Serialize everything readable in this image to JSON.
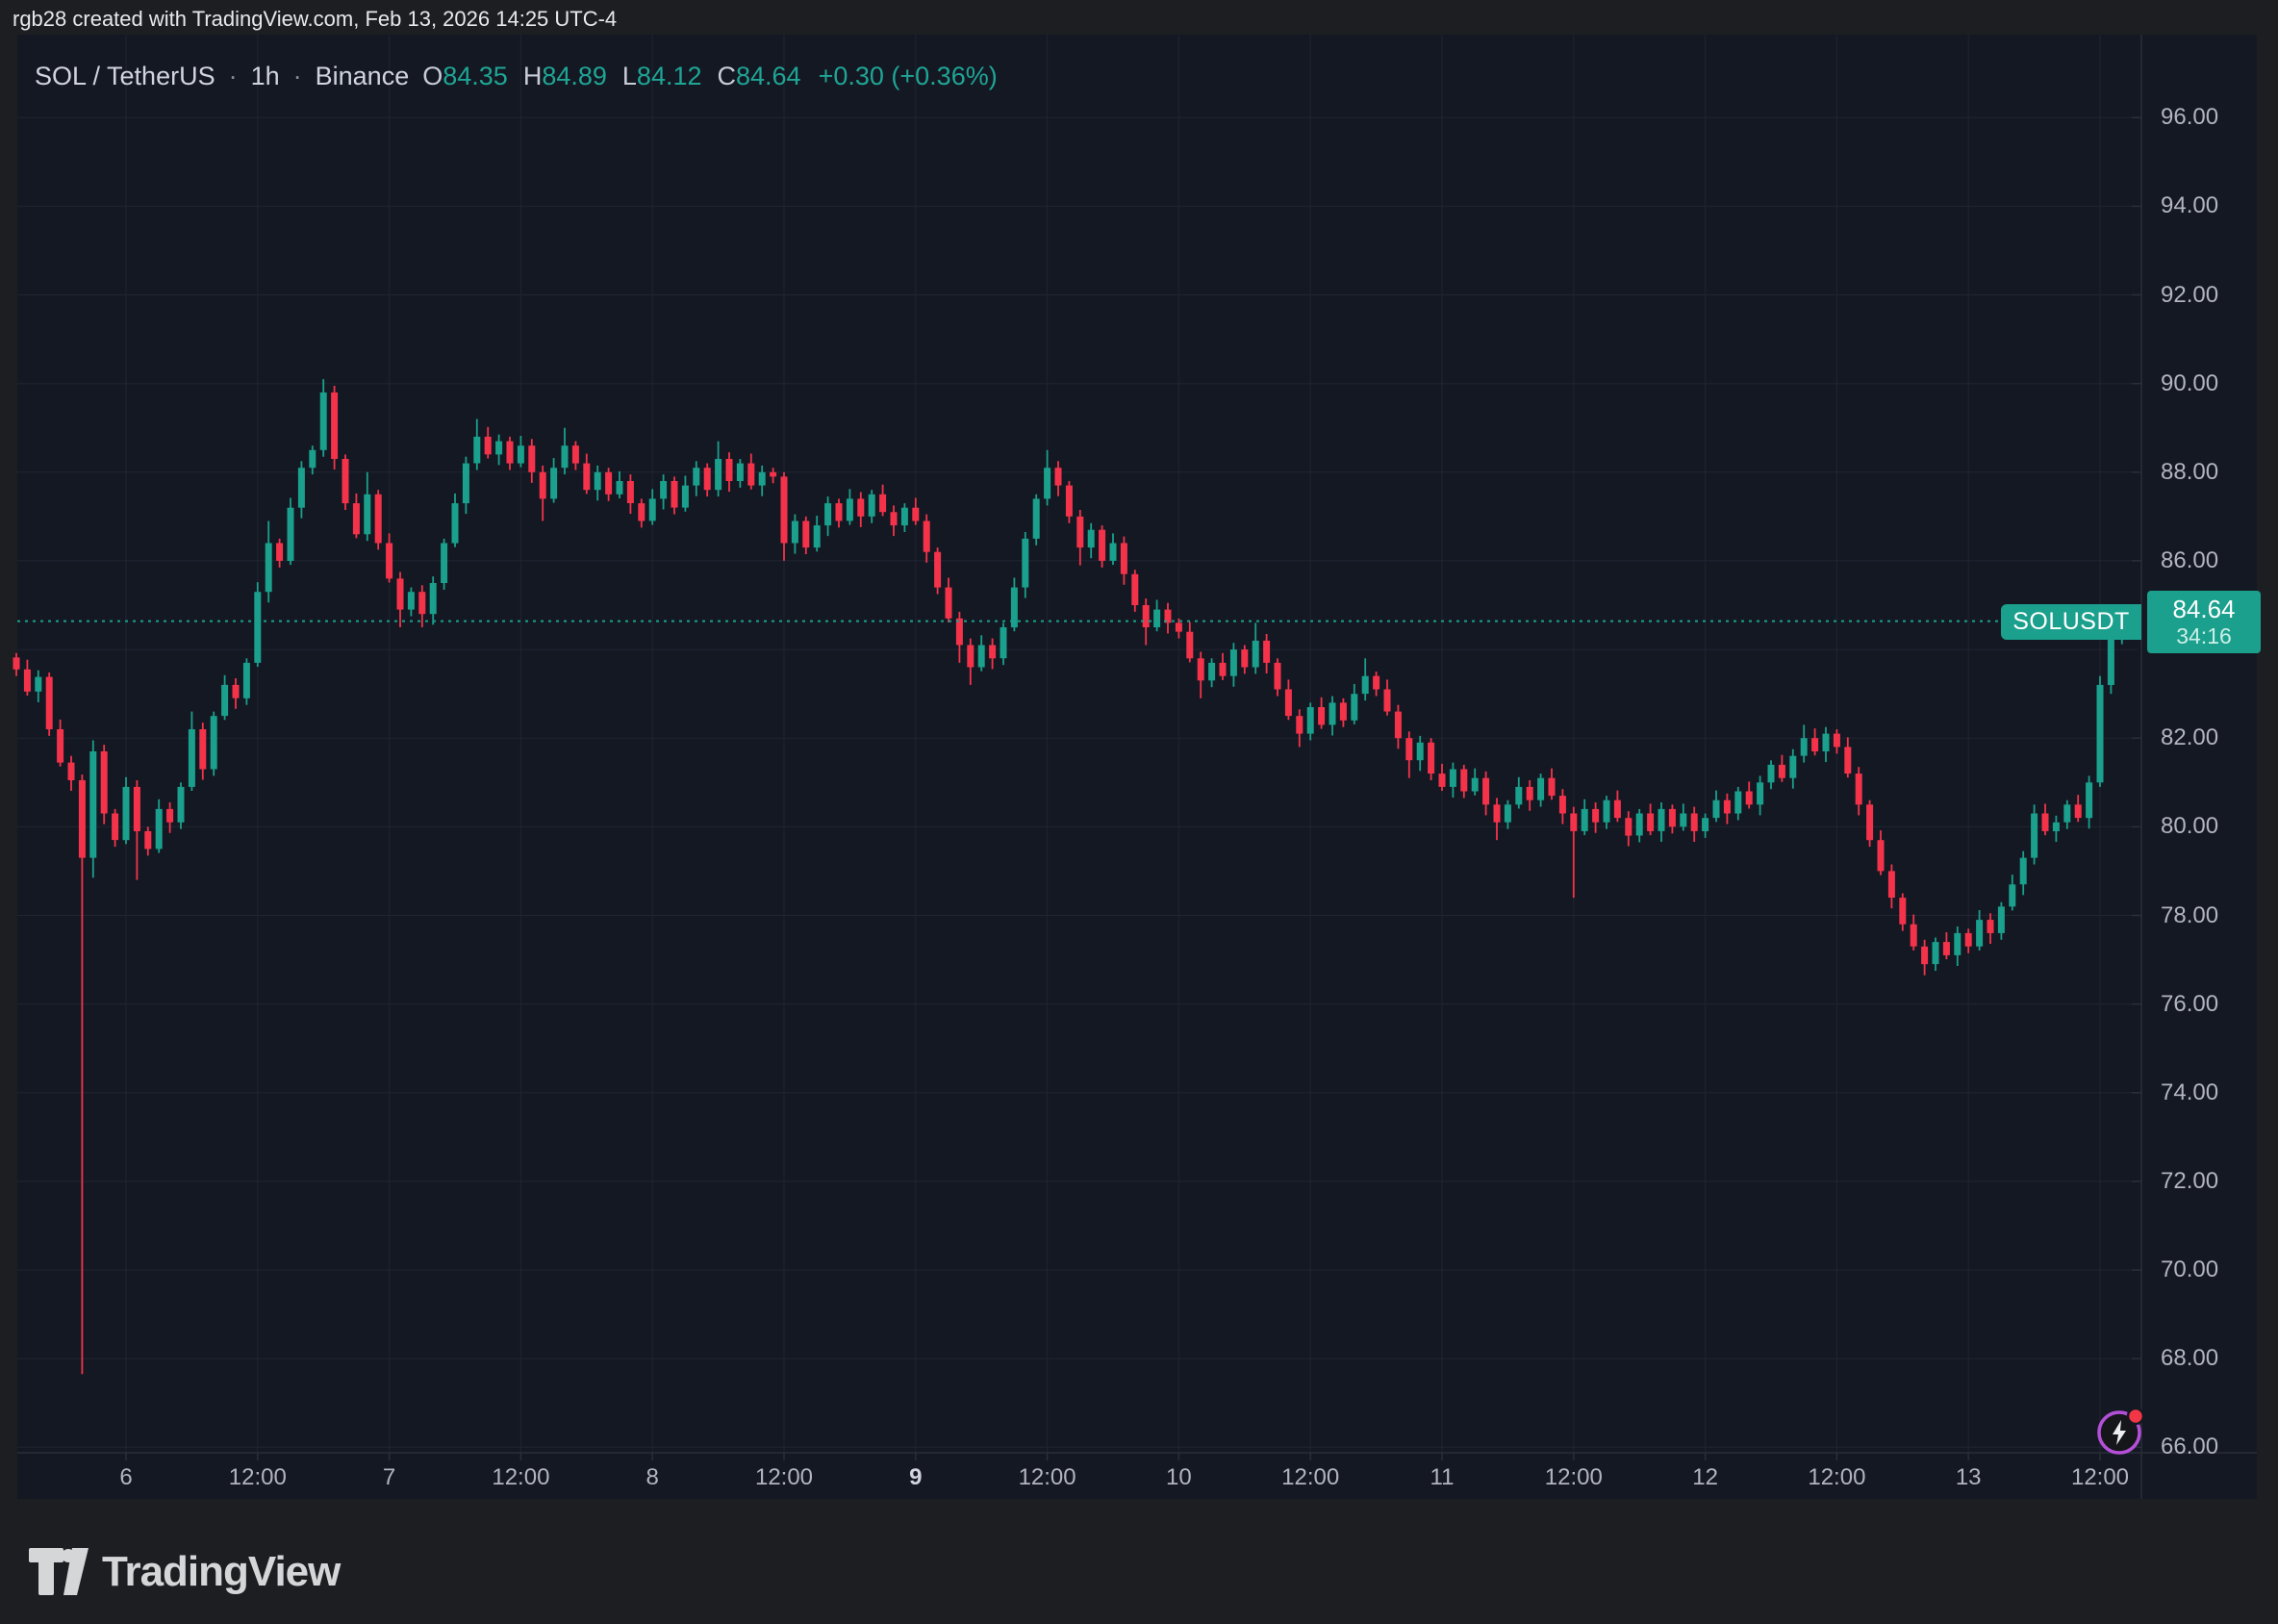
{
  "attribution": "rgb28 created with TradingView.com, Feb 13, 2026 14:25 UTC-4",
  "header": {
    "symbol": "SOL / TetherUS",
    "interval": "1h",
    "exchange": "Binance",
    "separator": "·",
    "o_label": "O",
    "o_value": "84.35",
    "h_label": "H",
    "h_value": "84.89",
    "l_label": "L",
    "l_value": "84.12",
    "c_label": "C",
    "c_value": "84.64",
    "change": "+0.30 (+0.36%)"
  },
  "price_tag": {
    "symbol": "SOLUSDT",
    "price": "84.64",
    "countdown": "34:16"
  },
  "logo_text": "TradingView",
  "colors": {
    "up": "#1aa08c",
    "down": "#f4334b",
    "background": "#141823",
    "frame": "#1d1e22",
    "grid": "#1f2531",
    "axis_text": "#b2b5be",
    "separator_line": "#2a2e39",
    "last_price_line": "#1aa08c",
    "flash_ring": "#b44fd8",
    "flash_dot": "#f23645"
  },
  "chart_data": {
    "type": "candlestick",
    "title": "SOL / TetherUS 1h Binance",
    "symbol": "SOLUSDT",
    "exchange": "Binance",
    "interval": "1h",
    "start_time": "Feb 5, 2026 14:00",
    "end_time": "Feb 13, 2026 14:00",
    "last_price": 84.64,
    "ylim": [
      65.9,
      97.9
    ],
    "grid": true,
    "price_axis_ticks": [
      {
        "v": 96,
        "label": "96.00"
      },
      {
        "v": 94,
        "label": "94.00"
      },
      {
        "v": 92,
        "label": "92.00"
      },
      {
        "v": 90,
        "label": "90.00"
      },
      {
        "v": 88,
        "label": "88.00"
      },
      {
        "v": 86,
        "label": "86.00"
      },
      {
        "v": 82,
        "label": "82.00"
      },
      {
        "v": 80,
        "label": "80.00"
      },
      {
        "v": 78,
        "label": "78.00"
      },
      {
        "v": 76,
        "label": "76.00"
      },
      {
        "v": 74,
        "label": "74.00"
      },
      {
        "v": 72,
        "label": "72.00"
      },
      {
        "v": 70,
        "label": "70.00"
      },
      {
        "v": 68,
        "label": "68.00"
      },
      {
        "v": 66,
        "label": "66.00"
      }
    ],
    "grid_price_levels": [
      96,
      94,
      92,
      90,
      88,
      86,
      84,
      82,
      80,
      78,
      76,
      74,
      72,
      70,
      68,
      66
    ],
    "time_axis_ticks": [
      {
        "i": 10,
        "label": "6",
        "bold": false
      },
      {
        "i": 22,
        "label": "12:00",
        "bold": false
      },
      {
        "i": 34,
        "label": "7",
        "bold": false
      },
      {
        "i": 46,
        "label": "12:00",
        "bold": false
      },
      {
        "i": 58,
        "label": "8",
        "bold": false
      },
      {
        "i": 70,
        "label": "12:00",
        "bold": false
      },
      {
        "i": 82,
        "label": "9",
        "bold": true
      },
      {
        "i": 94,
        "label": "12:00",
        "bold": false
      },
      {
        "i": 106,
        "label": "10",
        "bold": false
      },
      {
        "i": 118,
        "label": "12:00",
        "bold": false
      },
      {
        "i": 130,
        "label": "11",
        "bold": false
      },
      {
        "i": 142,
        "label": "12:00",
        "bold": false
      },
      {
        "i": 154,
        "label": "12",
        "bold": false
      },
      {
        "i": 166,
        "label": "12:00",
        "bold": false
      },
      {
        "i": 178,
        "label": "13",
        "bold": false
      },
      {
        "i": 190,
        "label": "12:00",
        "bold": false
      }
    ],
    "candles": [
      [
        83.82,
        83.92,
        83.4,
        83.55
      ],
      [
        83.55,
        83.77,
        82.96,
        83.05
      ],
      [
        83.05,
        83.53,
        82.81,
        83.38
      ],
      [
        83.38,
        83.48,
        82.05,
        82.2
      ],
      [
        82.2,
        82.42,
        81.36,
        81.45
      ],
      [
        81.45,
        81.6,
        80.81,
        81.05
      ],
      [
        81.05,
        81.18,
        67.65,
        79.3
      ],
      [
        79.3,
        81.95,
        78.85,
        81.7
      ],
      [
        81.7,
        81.85,
        80.06,
        80.3
      ],
      [
        80.3,
        80.4,
        79.55,
        79.7
      ],
      [
        79.7,
        81.12,
        79.61,
        80.9
      ],
      [
        80.9,
        81.05,
        78.8,
        79.9
      ],
      [
        79.9,
        80.0,
        79.35,
        79.5
      ],
      [
        79.5,
        80.62,
        79.41,
        80.4
      ],
      [
        80.4,
        80.55,
        79.86,
        80.1
      ],
      [
        80.1,
        81.0,
        79.95,
        80.9
      ],
      [
        80.9,
        82.6,
        80.81,
        82.2
      ],
      [
        82.2,
        82.35,
        81.06,
        81.3
      ],
      [
        81.3,
        82.6,
        81.15,
        82.5
      ],
      [
        82.5,
        83.42,
        82.41,
        83.2
      ],
      [
        83.2,
        83.35,
        82.66,
        82.9
      ],
      [
        82.9,
        83.8,
        82.75,
        83.7
      ],
      [
        83.7,
        85.52,
        83.61,
        85.3
      ],
      [
        85.3,
        86.9,
        85.06,
        86.4
      ],
      [
        86.4,
        86.5,
        85.85,
        86.0
      ],
      [
        86.0,
        87.42,
        85.91,
        87.2
      ],
      [
        87.2,
        88.25,
        86.96,
        88.1
      ],
      [
        88.1,
        88.6,
        87.95,
        88.5
      ],
      [
        88.5,
        90.1,
        88.35,
        89.8
      ],
      [
        89.8,
        89.95,
        88.06,
        88.3
      ],
      [
        88.3,
        88.4,
        87.15,
        87.3
      ],
      [
        87.3,
        87.52,
        86.51,
        86.6
      ],
      [
        86.6,
        88.0,
        86.45,
        87.5
      ],
      [
        87.5,
        87.6,
        86.25,
        86.4
      ],
      [
        86.4,
        86.62,
        85.51,
        85.6
      ],
      [
        85.6,
        85.75,
        84.5,
        84.9
      ],
      [
        84.9,
        85.4,
        84.75,
        85.3
      ],
      [
        85.3,
        85.45,
        84.5,
        84.8
      ],
      [
        84.8,
        85.65,
        84.56,
        85.5
      ],
      [
        85.5,
        86.5,
        85.35,
        86.4
      ],
      [
        86.4,
        87.52,
        86.31,
        87.3
      ],
      [
        87.3,
        88.35,
        87.06,
        88.2
      ],
      [
        88.2,
        89.2,
        88.05,
        88.8
      ],
      [
        88.8,
        89.02,
        88.31,
        88.4
      ],
      [
        88.4,
        88.85,
        88.16,
        88.7
      ],
      [
        88.7,
        88.8,
        88.05,
        88.2
      ],
      [
        88.2,
        88.82,
        88.11,
        88.6
      ],
      [
        88.6,
        88.75,
        87.76,
        88.0
      ],
      [
        88.0,
        88.15,
        86.9,
        87.4
      ],
      [
        87.4,
        88.32,
        87.31,
        88.1
      ],
      [
        88.1,
        89.0,
        87.95,
        88.6
      ],
      [
        88.6,
        88.7,
        88.05,
        88.2
      ],
      [
        88.2,
        88.42,
        87.51,
        87.6
      ],
      [
        87.6,
        88.15,
        87.36,
        88.0
      ],
      [
        88.0,
        88.1,
        87.35,
        87.5
      ],
      [
        87.5,
        88.02,
        87.41,
        87.8
      ],
      [
        87.8,
        87.95,
        87.06,
        87.3
      ],
      [
        87.3,
        87.4,
        86.75,
        86.9
      ],
      [
        86.9,
        87.62,
        86.81,
        87.4
      ],
      [
        87.4,
        87.95,
        87.16,
        87.8
      ],
      [
        87.8,
        87.9,
        87.05,
        87.2
      ],
      [
        87.2,
        87.92,
        87.11,
        87.7
      ],
      [
        87.7,
        88.25,
        87.46,
        88.1
      ],
      [
        88.1,
        88.2,
        87.45,
        87.6
      ],
      [
        87.6,
        88.7,
        87.45,
        88.3
      ],
      [
        88.3,
        88.45,
        87.56,
        87.8
      ],
      [
        87.8,
        88.3,
        87.65,
        88.2
      ],
      [
        88.2,
        88.42,
        87.61,
        87.7
      ],
      [
        87.7,
        88.15,
        87.46,
        88.0
      ],
      [
        88.0,
        88.1,
        87.75,
        87.9
      ],
      [
        87.9,
        88.0,
        86.0,
        86.4
      ],
      [
        86.4,
        87.05,
        86.16,
        86.9
      ],
      [
        86.9,
        87.0,
        86.15,
        86.3
      ],
      [
        86.3,
        87.02,
        86.21,
        86.8
      ],
      [
        86.8,
        87.45,
        86.56,
        87.3
      ],
      [
        87.3,
        87.4,
        86.75,
        86.9
      ],
      [
        86.9,
        87.62,
        86.81,
        87.4
      ],
      [
        87.4,
        87.55,
        86.76,
        87.0
      ],
      [
        87.0,
        87.6,
        86.85,
        87.5
      ],
      [
        87.5,
        87.72,
        87.01,
        87.1
      ],
      [
        87.1,
        87.25,
        86.56,
        86.8
      ],
      [
        86.8,
        87.3,
        86.65,
        87.2
      ],
      [
        87.2,
        87.42,
        86.81,
        86.9
      ],
      [
        86.9,
        87.05,
        85.96,
        86.2
      ],
      [
        86.2,
        86.3,
        85.25,
        85.4
      ],
      [
        85.4,
        85.62,
        84.61,
        84.7
      ],
      [
        84.7,
        84.85,
        83.7,
        84.1
      ],
      [
        84.1,
        84.25,
        83.2,
        83.6
      ],
      [
        83.6,
        84.32,
        83.51,
        84.1
      ],
      [
        84.1,
        84.25,
        83.56,
        83.8
      ],
      [
        83.8,
        84.6,
        83.65,
        84.5
      ],
      [
        84.5,
        85.62,
        84.41,
        85.4
      ],
      [
        85.4,
        86.65,
        85.16,
        86.5
      ],
      [
        86.5,
        87.5,
        86.35,
        87.4
      ],
      [
        87.4,
        88.5,
        87.25,
        88.1
      ],
      [
        88.1,
        88.25,
        87.46,
        87.7
      ],
      [
        87.7,
        87.8,
        86.85,
        87.0
      ],
      [
        87.0,
        87.15,
        85.9,
        86.3
      ],
      [
        86.3,
        86.85,
        86.06,
        86.7
      ],
      [
        86.7,
        86.8,
        85.85,
        86.0
      ],
      [
        86.0,
        86.62,
        85.91,
        86.4
      ],
      [
        86.4,
        86.55,
        85.46,
        85.7
      ],
      [
        85.7,
        85.8,
        84.85,
        85.0
      ],
      [
        85.0,
        85.15,
        84.1,
        84.5
      ],
      [
        84.5,
        85.12,
        84.41,
        84.9
      ],
      [
        84.9,
        85.05,
        84.36,
        84.6
      ],
      [
        84.6,
        84.7,
        84.25,
        84.4
      ],
      [
        84.4,
        84.62,
        83.71,
        83.8
      ],
      [
        83.8,
        83.95,
        82.9,
        83.3
      ],
      [
        83.3,
        83.8,
        83.15,
        83.7
      ],
      [
        83.7,
        83.92,
        83.31,
        83.4
      ],
      [
        83.4,
        84.15,
        83.16,
        84.0
      ],
      [
        84.0,
        84.1,
        83.45,
        83.6
      ],
      [
        83.6,
        84.6,
        83.45,
        84.2
      ],
      [
        84.2,
        84.35,
        83.46,
        83.7
      ],
      [
        83.7,
        83.8,
        82.95,
        83.1
      ],
      [
        83.1,
        83.32,
        82.41,
        82.5
      ],
      [
        82.5,
        82.65,
        81.8,
        82.1
      ],
      [
        82.1,
        82.8,
        81.95,
        82.7
      ],
      [
        82.7,
        82.92,
        82.21,
        82.3
      ],
      [
        82.3,
        82.95,
        82.06,
        82.8
      ],
      [
        82.8,
        82.9,
        82.25,
        82.4
      ],
      [
        82.4,
        83.22,
        82.31,
        83.0
      ],
      [
        83.0,
        83.8,
        82.85,
        83.4
      ],
      [
        83.4,
        83.5,
        82.95,
        83.1
      ],
      [
        83.1,
        83.32,
        82.51,
        82.6
      ],
      [
        82.6,
        82.75,
        81.76,
        82.0
      ],
      [
        82.0,
        82.15,
        81.1,
        81.5
      ],
      [
        81.5,
        82.05,
        81.26,
        81.9
      ],
      [
        81.9,
        82.0,
        81.05,
        81.2
      ],
      [
        81.2,
        81.42,
        80.81,
        80.9
      ],
      [
        80.9,
        81.45,
        80.66,
        81.3
      ],
      [
        81.3,
        81.4,
        80.65,
        80.8
      ],
      [
        80.8,
        81.32,
        80.71,
        81.1
      ],
      [
        81.1,
        81.25,
        80.26,
        80.5
      ],
      [
        80.5,
        80.65,
        79.7,
        80.1
      ],
      [
        80.1,
        80.6,
        79.95,
        80.5
      ],
      [
        80.5,
        81.12,
        80.41,
        80.9
      ],
      [
        80.9,
        81.05,
        80.36,
        80.6
      ],
      [
        80.6,
        81.2,
        80.45,
        81.1
      ],
      [
        81.1,
        81.32,
        80.61,
        80.7
      ],
      [
        80.7,
        80.85,
        80.06,
        80.3
      ],
      [
        80.3,
        80.45,
        78.4,
        79.9
      ],
      [
        79.9,
        80.62,
        79.81,
        80.4
      ],
      [
        80.4,
        80.55,
        79.86,
        80.1
      ],
      [
        80.1,
        80.7,
        79.95,
        80.6
      ],
      [
        80.6,
        80.82,
        80.11,
        80.2
      ],
      [
        80.2,
        80.35,
        79.56,
        79.8
      ],
      [
        79.8,
        80.4,
        79.65,
        80.3
      ],
      [
        80.3,
        80.52,
        79.81,
        79.9
      ],
      [
        79.9,
        80.55,
        79.66,
        80.4
      ],
      [
        80.4,
        80.5,
        79.85,
        80.0
      ],
      [
        80.0,
        80.52,
        79.91,
        80.3
      ],
      [
        80.3,
        80.45,
        79.66,
        79.9
      ],
      [
        79.9,
        80.3,
        79.75,
        80.2
      ],
      [
        80.2,
        80.82,
        80.11,
        80.6
      ],
      [
        80.6,
        80.75,
        80.06,
        80.3
      ],
      [
        80.3,
        80.9,
        80.15,
        80.8
      ],
      [
        80.8,
        81.02,
        80.41,
        80.5
      ],
      [
        80.5,
        81.15,
        80.26,
        81.0
      ],
      [
        81.0,
        81.5,
        80.85,
        81.4
      ],
      [
        81.4,
        81.62,
        81.01,
        81.1
      ],
      [
        81.1,
        81.75,
        80.86,
        81.6
      ],
      [
        81.6,
        82.3,
        81.45,
        82.0
      ],
      [
        82.0,
        82.22,
        81.61,
        81.7
      ],
      [
        81.7,
        82.25,
        81.46,
        82.1
      ],
      [
        82.1,
        82.2,
        81.65,
        81.8
      ],
      [
        81.8,
        82.02,
        81.11,
        81.2
      ],
      [
        81.2,
        81.35,
        80.26,
        80.5
      ],
      [
        80.5,
        80.6,
        79.55,
        79.7
      ],
      [
        79.7,
        79.92,
        78.91,
        79.0
      ],
      [
        79.0,
        79.15,
        78.16,
        78.4
      ],
      [
        78.4,
        78.5,
        77.65,
        77.8
      ],
      [
        77.8,
        78.02,
        77.21,
        77.3
      ],
      [
        77.3,
        77.45,
        76.65,
        76.9
      ],
      [
        76.9,
        77.5,
        76.75,
        77.4
      ],
      [
        77.4,
        77.62,
        77.01,
        77.1
      ],
      [
        77.1,
        77.75,
        76.86,
        77.6
      ],
      [
        77.6,
        77.7,
        77.15,
        77.3
      ],
      [
        77.3,
        78.12,
        77.21,
        77.9
      ],
      [
        77.9,
        78.05,
        77.36,
        77.6
      ],
      [
        77.6,
        78.3,
        77.45,
        78.2
      ],
      [
        78.2,
        78.92,
        78.11,
        78.7
      ],
      [
        78.7,
        79.45,
        78.46,
        79.3
      ],
      [
        79.3,
        80.5,
        79.15,
        80.3
      ],
      [
        80.3,
        80.52,
        79.81,
        79.9
      ],
      [
        79.9,
        80.25,
        79.66,
        80.1
      ],
      [
        80.1,
        80.6,
        79.95,
        80.5
      ],
      [
        80.5,
        80.72,
        80.11,
        80.2
      ],
      [
        80.2,
        81.15,
        79.96,
        81.0
      ],
      [
        81.0,
        83.4,
        80.9,
        83.2
      ],
      [
        83.2,
        84.6,
        83.0,
        84.3
      ],
      [
        84.35,
        84.89,
        84.12,
        84.64
      ]
    ]
  }
}
